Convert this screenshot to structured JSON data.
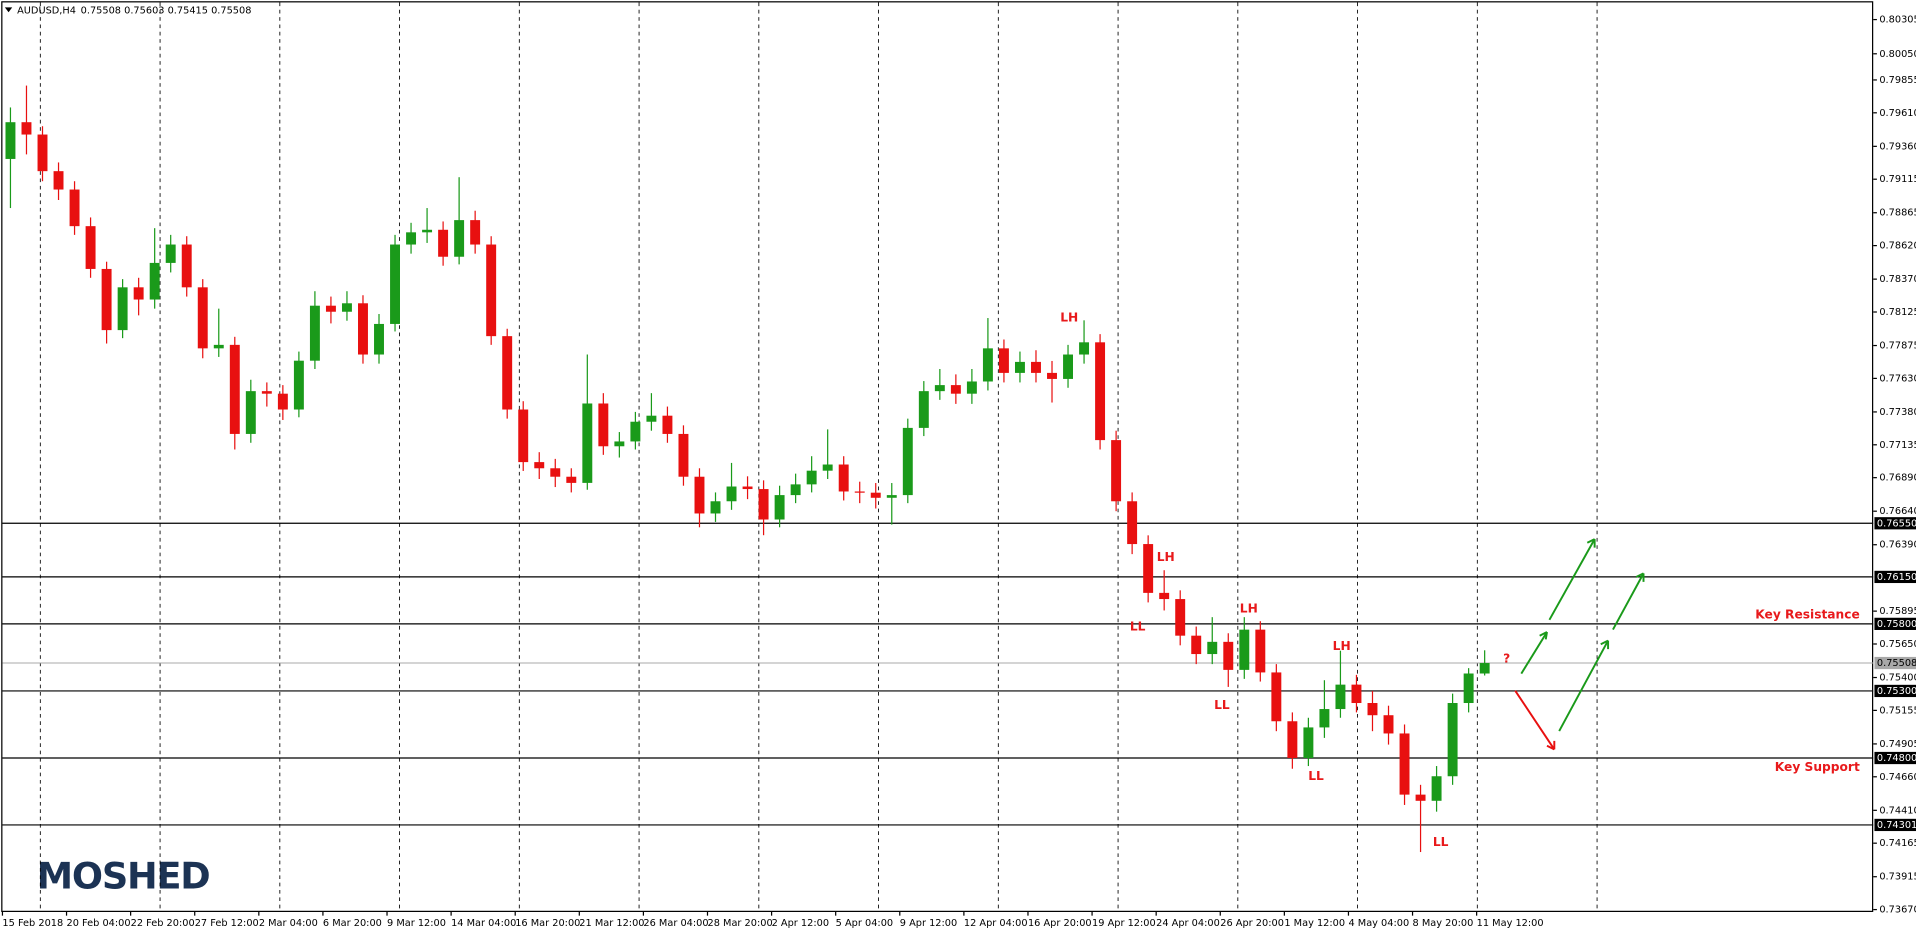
{
  "chart_data": {
    "type": "candlestick",
    "title": "AUDUSD,H4",
    "subtitle": "0.75508 0.75603 0.75415 0.75508",
    "watermark": "MOSHED",
    "up_color": "#1a9a1a",
    "down_color": "#e81010",
    "open": [
      0.79266,
      0.7954,
      0.79448,
      0.79175,
      0.79038,
      0.78765,
      0.78446,
      0.7799,
      0.78309,
      0.78218,
      0.78491,
      0.78628,
      0.78309,
      0.77854,
      0.7788,
      0.77216,
      0.77535,
      0.77516,
      0.77398,
      0.77762,
      0.78172,
      0.78127,
      0.7819,
      0.77808,
      0.78036,
      0.78628,
      0.78719,
      0.78738,
      0.78537,
      0.7881,
      0.78628,
      0.77945,
      0.77398,
      0.77006,
      0.7696,
      0.76897,
      0.76851,
      0.77443,
      0.77124,
      0.7716,
      0.77307,
      0.77352,
      0.77216,
      0.76897,
      0.76623,
      0.76714,
      0.76824,
      0.76805,
      0.76578,
      0.7676,
      0.7684,
      0.76942,
      0.76988,
      0.76787,
      0.76778,
      0.7674,
      0.7676,
      0.77261,
      0.77535,
      0.7758,
      0.77516,
      0.77607,
      0.77854,
      0.77671,
      0.77753,
      0.77671,
      0.77626,
      0.77808,
      0.77899,
      0.7717,
      0.76714,
      0.76395,
      0.76031,
      0.75985,
      0.75712,
      0.75575,
      0.75666,
      0.75457,
      0.75757,
      0.75438,
      0.75074,
      0.748,
      0.75028,
      0.75165,
      0.75347,
      0.7521,
      0.75119,
      0.74983,
      0.74527,
      0.74481,
      0.74664,
      0.7521,
      0.7543
    ],
    "high": [
      0.7965,
      0.79813,
      0.7951,
      0.7924,
      0.791,
      0.7883,
      0.785,
      0.7837,
      0.7838,
      0.7875,
      0.787,
      0.7869,
      0.7837,
      0.7815,
      0.7794,
      0.7762,
      0.776,
      0.7758,
      0.7783,
      0.7828,
      0.7824,
      0.7828,
      0.7825,
      0.7811,
      0.787,
      0.7879,
      0.789,
      0.788,
      0.7913,
      0.7888,
      0.7869,
      0.78,
      0.7746,
      0.7708,
      0.7703,
      0.7696,
      0.77808,
      0.7752,
      0.7723,
      0.7738,
      0.7752,
      0.7742,
      0.7728,
      0.7696,
      0.7678,
      0.77,
      0.769,
      0.7687,
      0.7683,
      0.7692,
      0.7705,
      0.7725,
      0.7705,
      0.7686,
      0.7685,
      0.7685,
      0.7733,
      0.7761,
      0.777,
      0.7766,
      0.777,
      0.7808,
      0.7792,
      0.7783,
      0.7784,
      0.7776,
      0.7788,
      0.78063,
      0.7796,
      0.7724,
      0.7678,
      0.7646,
      0.762,
      0.7605,
      0.7578,
      0.7585,
      0.7573,
      0.7585,
      0.7582,
      0.755,
      0.7514,
      0.751,
      0.7538,
      0.756,
      0.7542,
      0.753,
      0.7519,
      0.7505,
      0.746,
      0.7474,
      0.7528,
      0.7547,
      0.75603
    ],
    "low": [
      0.789,
      0.793,
      0.791,
      0.7896,
      0.787,
      0.7838,
      0.7789,
      0.7793,
      0.781,
      0.7815,
      0.7842,
      0.7824,
      0.7778,
      0.7779,
      0.771,
      0.7715,
      0.7742,
      0.7732,
      0.7734,
      0.777,
      0.7804,
      0.7806,
      0.7774,
      0.7774,
      0.7798,
      0.7856,
      0.7864,
      0.7847,
      0.7848,
      0.7856,
      0.7788,
      0.7733,
      0.7694,
      0.7688,
      0.7682,
      0.7678,
      0.768,
      0.7706,
      0.7704,
      0.771,
      0.7724,
      0.7715,
      0.7683,
      0.7652,
      0.7656,
      0.7665,
      0.7673,
      0.76461,
      0.7652,
      0.767,
      0.7678,
      0.7688,
      0.7672,
      0.767,
      0.7666,
      0.7654,
      0.767,
      0.772,
      0.7747,
      0.7744,
      0.7744,
      0.7754,
      0.776,
      0.776,
      0.776,
      0.7745,
      0.7756,
      0.7774,
      0.771,
      0.7664,
      0.7632,
      0.7596,
      0.759,
      0.7564,
      0.755,
      0.755,
      0.7533,
      0.7539,
      0.7537,
      0.75,
      0.7472,
      0.7474,
      0.7495,
      0.751,
      0.7514,
      0.75,
      0.749,
      0.7445,
      0.74099,
      0.744,
      0.746,
      0.7514,
      0.75415
    ],
    "close": [
      0.7954,
      0.79448,
      0.79175,
      0.79038,
      0.78765,
      0.78446,
      0.7799,
      0.78309,
      0.78218,
      0.78491,
      0.78628,
      0.78309,
      0.77854,
      0.7788,
      0.77216,
      0.77535,
      0.77516,
      0.77398,
      0.77762,
      0.78172,
      0.78127,
      0.7819,
      0.77808,
      0.78036,
      0.78628,
      0.78719,
      0.78738,
      0.78537,
      0.7881,
      0.78628,
      0.77945,
      0.77398,
      0.77006,
      0.7696,
      0.76897,
      0.76851,
      0.77443,
      0.77124,
      0.7716,
      0.77307,
      0.77352,
      0.77216,
      0.76897,
      0.76623,
      0.76714,
      0.76824,
      0.76805,
      0.76578,
      0.7676,
      0.7684,
      0.76942,
      0.76988,
      0.76787,
      0.76778,
      0.7674,
      0.7676,
      0.77261,
      0.77535,
      0.7758,
      0.77516,
      0.77607,
      0.77854,
      0.77671,
      0.77753,
      0.77671,
      0.77626,
      0.77808,
      0.77899,
      0.7717,
      0.76714,
      0.76395,
      0.76031,
      0.75985,
      0.75712,
      0.75575,
      0.75666,
      0.75457,
      0.75757,
      0.75438,
      0.75074,
      0.748,
      0.75028,
      0.75165,
      0.75347,
      0.7521,
      0.75119,
      0.74983,
      0.74527,
      0.74481,
      0.74664,
      0.7521,
      0.7543,
      0.75508
    ],
    "ylim": [
      0.73652,
      0.80451
    ],
    "yticks": [
      0.80305,
      {
        "value": 0.8005,
        "label": "0.80050"
      },
      0.79855,
      {
        "value": 0.7961,
        "label": "0.79610"
      },
      {
        "value": 0.7936,
        "label": "0.79360"
      },
      0.79115,
      0.78865,
      {
        "value": 0.7862,
        "label": "0.78620"
      },
      {
        "value": 0.7837,
        "label": "0.78370"
      },
      0.78125,
      0.77875,
      {
        "value": 0.7763,
        "label": "0.77630"
      },
      {
        "value": 0.7738,
        "label": "0.77380"
      },
      0.77135,
      {
        "value": 0.7689,
        "label": "0.76890"
      },
      {
        "value": 0.7664,
        "label": "0.76640"
      },
      {
        "value": 0.7639,
        "label": "0.76390"
      },
      0.75895,
      {
        "value": 0.7565,
        "label": "0.75650"
      },
      {
        "value": 0.754,
        "label": "0.75400"
      },
      0.75155,
      0.74905,
      {
        "value": 0.7466,
        "label": "0.74660"
      },
      {
        "value": 0.7441,
        "label": "0.74410"
      },
      0.74165,
      0.73915,
      {
        "value": 0.7367,
        "label": "0.73670"
      }
    ],
    "xlim": [
      0,
      467
    ],
    "xticks": [
      {
        "value": 0,
        "label": "15 Feb 2018"
      },
      {
        "value": 16,
        "label": "20 Feb 04:00"
      },
      {
        "value": 32,
        "label": "22 Feb 20:00"
      },
      {
        "value": 48,
        "label": "27 Feb 12:00"
      },
      {
        "value": 64,
        "label": "2 Mar 04:00"
      },
      {
        "value": 80,
        "label": "6 Mar 20:00"
      },
      {
        "value": 96,
        "label": "9 Mar 12:00"
      },
      {
        "value": 112,
        "label": "14 Mar 04:00"
      },
      {
        "value": 128,
        "label": "16 Mar 20:00"
      },
      {
        "value": 144,
        "label": "21 Mar 12:00"
      },
      {
        "value": 160,
        "label": "26 Mar 04:00"
      },
      {
        "value": 176,
        "label": "28 Mar 20:00"
      },
      {
        "value": 192,
        "label": "2 Apr 12:00"
      },
      {
        "value": 208,
        "label": "5 Apr 04:00"
      },
      {
        "value": 224,
        "label": "9 Apr 12:00"
      },
      {
        "value": 240,
        "label": "12 Apr 04:00"
      },
      {
        "value": 256,
        "label": "16 Apr 20:00"
      },
      {
        "value": 272,
        "label": "19 Apr 12:00"
      },
      {
        "value": 288,
        "label": "24 Apr 04:00"
      },
      {
        "value": 304,
        "label": "26 Apr 20:00"
      },
      {
        "value": 320,
        "label": "1 May 12:00"
      },
      {
        "value": 336,
        "label": "4 May 04:00"
      },
      {
        "value": 352,
        "label": "8 May 20:00"
      },
      {
        "value": 368,
        "label": "11 May 12:00"
      }
    ],
    "levels": [
      {
        "value": 0.7655,
        "label": "0.76550"
      },
      {
        "value": 0.7615,
        "label": "0.76150"
      },
      {
        "value": 0.758,
        "label": "0.75800"
      },
      {
        "value": 0.753,
        "label": "0.75300"
      },
      {
        "value": 0.748,
        "label": "0.74800"
      },
      0.74301
    ],
    "level_color": "#000000",
    "current_price": 0.75508,
    "current_price_color": "#a8a8a8",
    "annotation_color": "#e8191b",
    "annotations": [
      "LH",
      "LH",
      "LL",
      "LH",
      "LL",
      "LH",
      "LL",
      "LL",
      "?",
      "Key Resistance",
      "Key Support"
    ]
  }
}
